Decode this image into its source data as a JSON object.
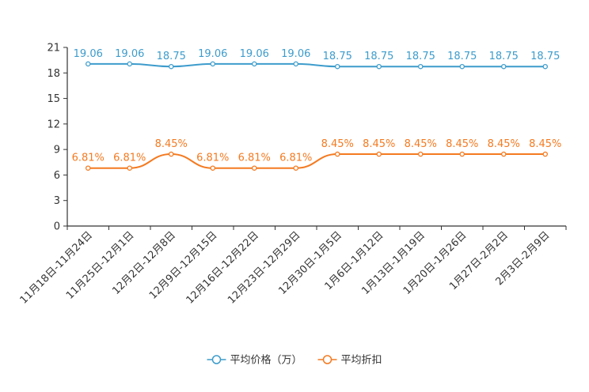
{
  "chart_data": {
    "type": "line",
    "title": "",
    "xlabel": "",
    "ylabel": "",
    "ylim": [
      0,
      21
    ],
    "yticks": [
      0,
      3,
      6,
      9,
      12,
      15,
      18,
      21
    ],
    "ytick_labels": [
      "0",
      "3",
      "6",
      "9",
      "12",
      "15",
      "18",
      "21"
    ],
    "grid": false,
    "legend_position": "bottom-center",
    "categories": [
      "11月18日-11月24日",
      "11月25日-12月1日",
      "12月2日-12月8日",
      "12月9日-12月15日",
      "12月16日-12月22日",
      "12月23日-12月29日",
      "12月30日-1月5日",
      "1月6日-1月12日",
      "1月13日-1月19日",
      "1月20日-1月26日",
      "1月27日-2月2日",
      "2月3日-2月9日"
    ],
    "series": [
      {
        "name": "平均价格（万）",
        "color": "#3d9ccc",
        "values": [
          19.06,
          19.06,
          18.75,
          19.06,
          19.06,
          19.06,
          18.75,
          18.75,
          18.75,
          18.75,
          18.75,
          18.75
        ],
        "labels": [
          "19.06",
          "19.06",
          "18.75",
          "19.06",
          "19.06",
          "19.06",
          "18.75",
          "18.75",
          "18.75",
          "18.75",
          "18.75",
          "18.75"
        ]
      },
      {
        "name": "平均折扣",
        "color": "#f47a20",
        "values": [
          6.81,
          6.81,
          8.45,
          6.81,
          6.81,
          6.81,
          8.45,
          8.45,
          8.45,
          8.45,
          8.45,
          8.45
        ],
        "labels": [
          "6.81%",
          "6.81%",
          "8.45%",
          "6.81%",
          "6.81%",
          "6.81%",
          "8.45%",
          "8.45%",
          "8.45%",
          "8.45%",
          "8.45%",
          "8.45%"
        ]
      }
    ]
  },
  "colors": {
    "axis": "#333333",
    "point_fill": "#ffffff"
  }
}
